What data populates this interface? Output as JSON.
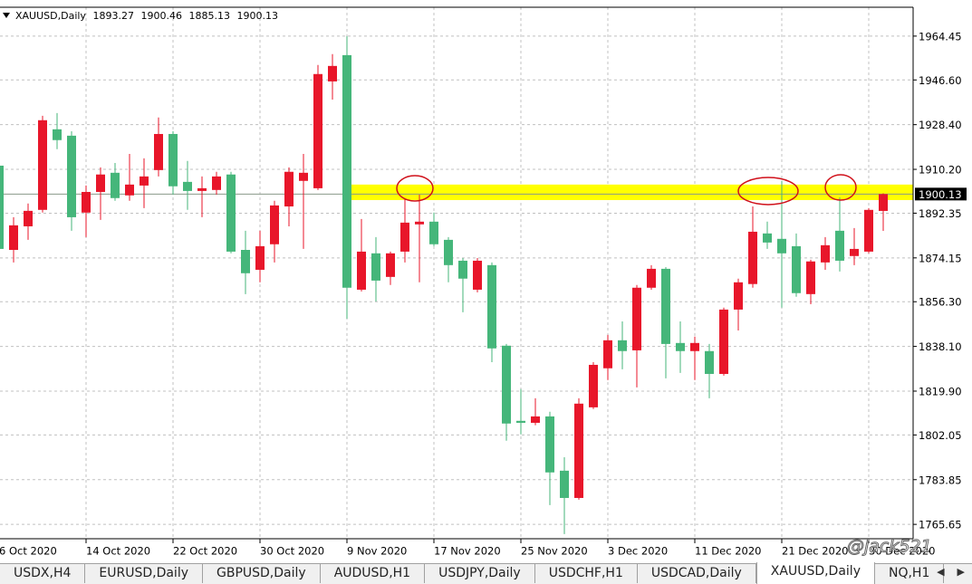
{
  "chart_data": {
    "type": "candlestick",
    "title": "XAUUSD,Daily",
    "categories": [
      "6 Oct 2020",
      null,
      null,
      null,
      null,
      null,
      "14 Oct 2020",
      null,
      null,
      null,
      null,
      null,
      "22 Oct 2020",
      null,
      null,
      null,
      null,
      null,
      "30 Oct 2020",
      null,
      null,
      null,
      null,
      null,
      "9 Nov 2020",
      null,
      null,
      null,
      null,
      null,
      "17 Nov 2020",
      null,
      null,
      null,
      null,
      null,
      "25 Nov 2020",
      null,
      null,
      null,
      null,
      null,
      "3 Dec 2020",
      null,
      null,
      null,
      null,
      null,
      "11 Dec 2020",
      null,
      null,
      null,
      null,
      null,
      "21 Dec 2020",
      null,
      null,
      null,
      null,
      null,
      "30 Dec 2020",
      null
    ],
    "open": [
      1911.7,
      1877.4,
      1887.0,
      1893.7,
      1926.5,
      1923.9,
      1892.6,
      1901.0,
      1908.8,
      1899.6,
      1903.6,
      1909.9,
      1924.6,
      1905.1,
      1901.4,
      1901.8,
      1908.1,
      1877.4,
      1869.3,
      1879.7,
      1895.1,
      1905.5,
      1902.5,
      1946.0,
      1956.7,
      1861.2,
      1876.0,
      1866.4,
      1876.7,
      1887.8,
      1888.9,
      1881.5,
      1873.0,
      1861.2,
      1871.2,
      1838.4,
      1807.8,
      1807.0,
      1809.6,
      1787.5,
      1776.4,
      1813.3,
      1829.2,
      1840.6,
      1836.5,
      1862.0,
      1869.7,
      1839.5,
      1836.2,
      1836.2,
      1826.9,
      1853.1,
      1863.5,
      1884.1,
      1881.9,
      1878.9,
      1859.4,
      1872.3,
      1885.2,
      1874.9,
      1876.7,
      1893.27
    ],
    "high": [
      1912.8,
      1890.7,
      1896.3,
      1932.0,
      1933.1,
      1925.7,
      1903.6,
      1911.0,
      1912.8,
      1916.5,
      1914.7,
      1931.3,
      1925.7,
      1913.6,
      1907.3,
      1909.2,
      1909.2,
      1885.2,
      1885.2,
      1897.4,
      1911.0,
      1916.5,
      1952.7,
      1957.1,
      1964.4,
      1890.0,
      1882.6,
      1876.7,
      1898.1,
      1899.9,
      1892.6,
      1882.6,
      1874.1,
      1874.1,
      1872.3,
      1839.1,
      1820.7,
      1817.0,
      1811.5,
      1793.0,
      1817.0,
      1831.7,
      1842.8,
      1848.3,
      1863.1,
      1871.2,
      1870.4,
      1848.3,
      1842.1,
      1839.1,
      1853.9,
      1865.7,
      1895.1,
      1888.9,
      1905.5,
      1884.1,
      1873.4,
      1882.6,
      1898.8,
      1886.3,
      1894.4,
      1900.46
    ],
    "low": [
      1872.3,
      1872.3,
      1881.5,
      1892.6,
      1918.4,
      1885.2,
      1882.6,
      1889.6,
      1897.4,
      1897.4,
      1894.4,
      1907.3,
      1899.9,
      1893.7,
      1890.7,
      1899.9,
      1876.0,
      1859.4,
      1864.2,
      1872.3,
      1887.0,
      1877.8,
      1901.8,
      1938.6,
      1849.4,
      1860.5,
      1856.4,
      1863.1,
      1872.3,
      1864.2,
      1878.9,
      1864.2,
      1852.0,
      1860.1,
      1831.7,
      1799.7,
      1802.3,
      1806.0,
      1773.5,
      1761.7,
      1775.7,
      1812.6,
      1824.4,
      1828.8,
      1821.4,
      1861.2,
      1825.1,
      1827.3,
      1824.4,
      1817.0,
      1826.2,
      1844.6,
      1862.0,
      1877.8,
      1853.9,
      1858.3,
      1855.3,
      1869.3,
      1868.6,
      1871.2,
      1876.0,
      1885.13
    ],
    "close": [
      1877.8,
      1887.4,
      1893.3,
      1930.2,
      1922.1,
      1890.7,
      1901.0,
      1908.1,
      1898.5,
      1904.0,
      1907.3,
      1924.6,
      1903.3,
      1901.4,
      1902.5,
      1907.3,
      1876.7,
      1867.9,
      1878.9,
      1895.5,
      1909.2,
      1908.8,
      1949.0,
      1952.3,
      1862.0,
      1876.7,
      1864.9,
      1876.0,
      1888.5,
      1888.9,
      1879.7,
      1871.2,
      1865.7,
      1873.0,
      1837.3,
      1806.7,
      1807.0,
      1809.6,
      1786.8,
      1776.4,
      1814.8,
      1830.6,
      1840.6,
      1836.2,
      1862.0,
      1869.7,
      1839.1,
      1836.2,
      1839.5,
      1826.9,
      1853.1,
      1864.2,
      1884.8,
      1880.4,
      1876.0,
      1859.8,
      1872.7,
      1879.3,
      1873.0,
      1877.8,
      1893.7,
      1900.13
    ],
    "up_color": "#e8162a",
    "down_color": "#45b67a",
    "ylim": [
      1759.8,
      1976.2
    ],
    "yticks": [
      1964.45,
      {
        "value": 1946.6,
        "label": "1946.60"
      },
      {
        "value": 1928.4,
        "label": "1928.40"
      },
      {
        "value": 1910.2,
        "label": "1910.20"
      },
      1892.35,
      1874.15,
      {
        "value": 1856.3,
        "label": "1856.30"
      },
      {
        "value": 1838.1,
        "label": "1838.10"
      },
      {
        "value": 1819.9,
        "label": "1819.90"
      },
      1802.05,
      1783.85,
      1765.65
    ],
    "grid": true,
    "zone": {
      "low": 1897.7,
      "high": 1904.0,
      "color": "#ffff00"
    },
    "watermark": "@jack521"
  },
  "tabs": {
    "items": [
      "USDX,H4",
      "EURUSD,Daily",
      "GBPUSD,Daily",
      "AUDUSD,H1",
      "USDJPY,Daily",
      "USDCHF,H1",
      "USDCAD,Daily",
      "XAUUSD,Daily",
      "NQ,H1"
    ],
    "active": 7
  }
}
